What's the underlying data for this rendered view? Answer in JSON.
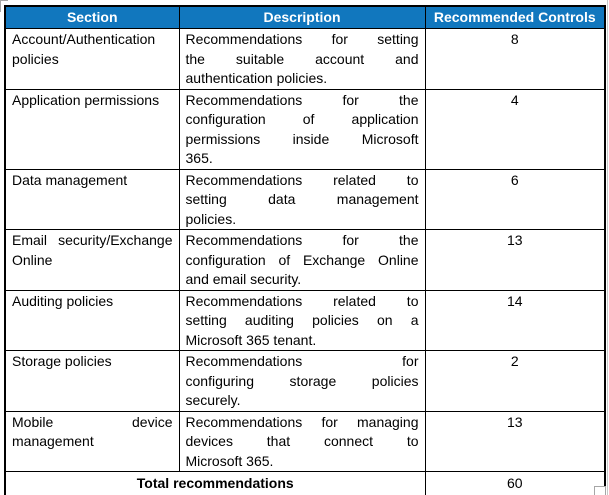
{
  "table": {
    "headers": [
      "Section",
      "Description",
      "Recommended Controls"
    ],
    "rows": [
      {
        "section_lines": [
          "Account/Authentication",
          "policies"
        ],
        "description_lines": [
          "Recommendations for setting",
          "the suitable account and",
          "authentication policies."
        ],
        "controls": "8"
      },
      {
        "section_lines": [
          "Application permissions"
        ],
        "description_lines": [
          "Recommendations for the",
          "configuration of application",
          "permissions inside Microsoft",
          "365."
        ],
        "controls": "4"
      },
      {
        "section_lines": [
          "Data management"
        ],
        "description_lines": [
          "Recommendations related to",
          "setting data management",
          "policies."
        ],
        "controls": "6"
      },
      {
        "section_lines": [
          "Email security/Exchange",
          "Online"
        ],
        "description_lines": [
          "Recommendations for the",
          "configuration of Exchange Online",
          "and email security."
        ],
        "controls": "13"
      },
      {
        "section_lines": [
          "Auditing policies"
        ],
        "description_lines": [
          "Recommendations related to",
          "setting auditing policies on a",
          "Microsoft 365 tenant."
        ],
        "controls": "14"
      },
      {
        "section_lines": [
          "Storage policies"
        ],
        "description_lines": [
          "Recommendations for",
          "configuring storage policies",
          "securely."
        ],
        "controls": "2"
      },
      {
        "section_lines": [
          "Mobile device",
          "management"
        ],
        "description_lines": [
          "Recommendations for managing",
          "devices that connect to",
          "Microsoft 365."
        ],
        "controls": "13"
      }
    ],
    "total_label": "Total recommendations",
    "total_value": "60"
  },
  "colors": {
    "header_bg": "#1177BE",
    "header_text": "#FFFFFF",
    "border": "#000000",
    "handle_gray": "#A6A6A6"
  }
}
